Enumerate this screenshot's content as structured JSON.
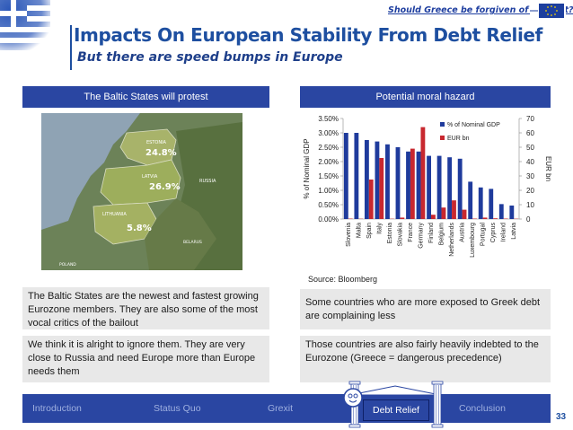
{
  "header": {
    "tagline": "Should Greece be forgiven of its debt?"
  },
  "title": "Impacts On European Stability From Debt Relief",
  "subtitle": "But there are speed bumps in Europe",
  "left_panel": {
    "header": "The Baltic States will protest",
    "map_labels": {
      "estonia": "ESTONIA",
      "estonia_value": "24.8%",
      "latvia": "LATVIA",
      "latvia_value": "26.9%",
      "lithuania": "LITHUANIA",
      "lithuania_value": "5.8%",
      "russia": "RUSSIA",
      "belarus": "BELARUS",
      "poland": "POLAND"
    },
    "text1": "The Baltic States are the newest and fastest growing Eurozone members. They are also some of the most vocal critics of the bailout",
    "text2": "We think it is alright to ignore them. They are very close to Russia and need Europe more than Europe needs them"
  },
  "right_panel": {
    "header": "Potential moral hazard",
    "source": "Source: Bloomberg",
    "text1": "Some countries who are more exposed to Greek debt are complaining less",
    "text2": "Those countries are also fairly heavily indebted to the Eurozone (Greece = dangerous precedence)"
  },
  "chart_data": {
    "type": "bar",
    "categories": [
      "Slovenia",
      "Malta",
      "Spain",
      "Italy",
      "Estonia",
      "Slovakia",
      "France",
      "Germany",
      "Finland",
      "Belgium",
      "Netherlands",
      "Austria",
      "Luxembourg",
      "Portugal",
      "Cyprus",
      "Ireland",
      "Latvia"
    ],
    "series": [
      {
        "name": "% of Nominal GDP",
        "axis": "left",
        "color": "#1f3b9c",
        "values": [
          3.0,
          3.0,
          2.75,
          2.7,
          2.6,
          2.5,
          2.35,
          2.35,
          2.2,
          2.2,
          2.15,
          2.1,
          1.3,
          1.1,
          1.05,
          0.52,
          0.47
        ]
      },
      {
        "name": "EUR bn",
        "axis": "right",
        "color": "#c8282f",
        "values": [
          0.3,
          0.2,
          27.5,
          42.5,
          0.2,
          1.0,
          49.0,
          64.0,
          3.0,
          8.0,
          13.0,
          6.5,
          0.3,
          1.0,
          0.5,
          0.3,
          0.2
        ]
      }
    ],
    "ylabel_left": "% of Nominal GDP",
    "ylabel_right": "EUR bn",
    "ylim_left": [
      0,
      3.5
    ],
    "ylim_right": [
      0,
      70
    ],
    "yticks_left": [
      "0.00%",
      "0.50%",
      "1.00%",
      "1.50%",
      "2.00%",
      "2.50%",
      "3.00%",
      "3.50%"
    ],
    "yticks_right": [
      "0",
      "10",
      "20",
      "30",
      "40",
      "50",
      "60",
      "70"
    ],
    "legend_position": "top-right",
    "grid": false
  },
  "nav": {
    "items": [
      "Introduction",
      "Status Quo",
      "Grexit",
      "Debt Relief",
      "Conclusion"
    ],
    "active": "Debt Relief"
  },
  "page_number": "33",
  "colors": {
    "accent": "#2a46a2",
    "title": "#1e4fa0",
    "bar_primary": "#1f3b9c",
    "bar_secondary": "#c8282f"
  }
}
